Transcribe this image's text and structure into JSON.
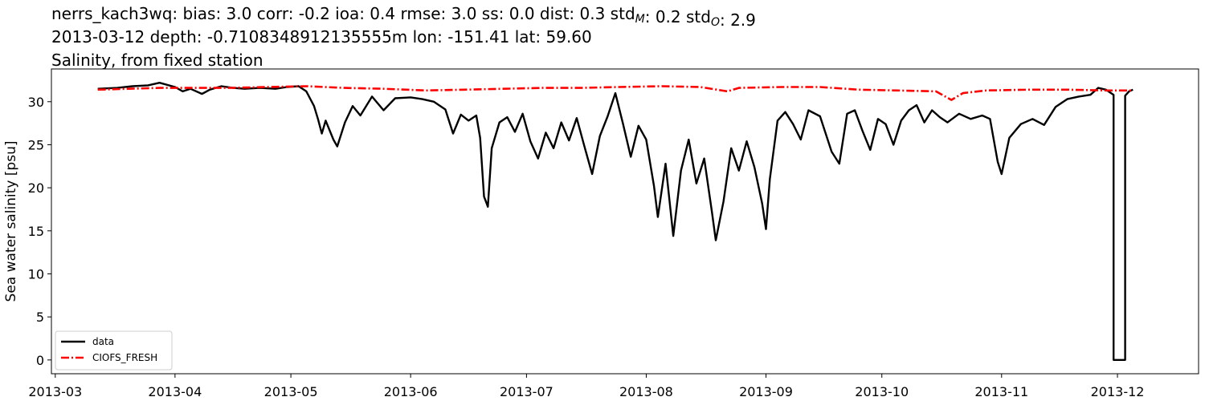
{
  "chart_data": {
    "type": "line",
    "title_lines": [
      {
        "parts": [
          {
            "text": "nerrs_kach3wq: bias: 3.0  corr: -0.2  ioa: 0.4  rmse: 3.0  ss: 0.0  dist: 0.3  std"
          },
          {
            "text": "M",
            "sub": true
          },
          {
            "text": ": 0.2  std"
          },
          {
            "text": "O",
            "sub": true
          },
          {
            "text": ": 2.9"
          }
        ]
      },
      {
        "parts": [
          {
            "text": "2013-03-12 depth: -0.7108348912135555m lon: -151.41 lat: 59.60"
          }
        ]
      },
      {
        "parts": [
          {
            "text": "Salinity, from fixed station"
          }
        ]
      }
    ],
    "xlabel": "",
    "ylabel": "Sea water salinity [psu]",
    "xlim": [
      "2013-02-28",
      "2013-12-22"
    ],
    "ylim": [
      -1.6,
      33.8
    ],
    "x_ticks": [
      "2013-03-01",
      "2013-04-01",
      "2013-05-01",
      "2013-06-01",
      "2013-07-01",
      "2013-08-01",
      "2013-09-01",
      "2013-10-01",
      "2013-11-01",
      "2013-12-01"
    ],
    "x_tick_labels": [
      "2013-03",
      "2013-04",
      "2013-05",
      "2013-06",
      "2013-07",
      "2013-08",
      "2013-09",
      "2013-10",
      "2013-11",
      "2013-12"
    ],
    "y_ticks": [
      0,
      5,
      10,
      15,
      20,
      25,
      30
    ],
    "grid": false,
    "legend_position": "lower-left",
    "series": [
      {
        "name": "data",
        "color": "#000000",
        "style": "solid",
        "points": [
          [
            "2013-03-12",
            31.5
          ],
          [
            "2013-03-17",
            31.6
          ],
          [
            "2013-03-21",
            31.8
          ],
          [
            "2013-03-25",
            31.9
          ],
          [
            "2013-03-28",
            32.2
          ],
          [
            "2013-04-01",
            31.7
          ],
          [
            "2013-04-03",
            31.2
          ],
          [
            "2013-04-05",
            31.5
          ],
          [
            "2013-04-08",
            30.9
          ],
          [
            "2013-04-10",
            31.4
          ],
          [
            "2013-04-13",
            31.8
          ],
          [
            "2013-04-16",
            31.6
          ],
          [
            "2013-04-19",
            31.5
          ],
          [
            "2013-04-23",
            31.6
          ],
          [
            "2013-04-27",
            31.5
          ],
          [
            "2013-04-30",
            31.7
          ],
          [
            "2013-05-03",
            31.8
          ],
          [
            "2013-05-05",
            31.2
          ],
          [
            "2013-05-07",
            29.5
          ],
          [
            "2013-05-08",
            28.0
          ],
          [
            "2013-05-09",
            26.3
          ],
          [
            "2013-05-10",
            27.8
          ],
          [
            "2013-05-12",
            25.6
          ],
          [
            "2013-05-13",
            24.8
          ],
          [
            "2013-05-15",
            27.6
          ],
          [
            "2013-05-17",
            29.5
          ],
          [
            "2013-05-19",
            28.4
          ],
          [
            "2013-05-22",
            30.6
          ],
          [
            "2013-05-25",
            29.0
          ],
          [
            "2013-05-28",
            30.4
          ],
          [
            "2013-06-01",
            30.5
          ],
          [
            "2013-06-04",
            30.3
          ],
          [
            "2013-06-07",
            30.0
          ],
          [
            "2013-06-10",
            29.1
          ],
          [
            "2013-06-12",
            26.3
          ],
          [
            "2013-06-14",
            28.5
          ],
          [
            "2013-06-16",
            27.8
          ],
          [
            "2013-06-18",
            28.4
          ],
          [
            "2013-06-19",
            25.8
          ],
          [
            "2013-06-20",
            19.0
          ],
          [
            "2013-06-21",
            17.8
          ],
          [
            "2013-06-22",
            24.6
          ],
          [
            "2013-06-24",
            27.6
          ],
          [
            "2013-06-26",
            28.2
          ],
          [
            "2013-06-28",
            26.5
          ],
          [
            "2013-06-30",
            28.6
          ],
          [
            "2013-07-02",
            25.4
          ],
          [
            "2013-07-04",
            23.4
          ],
          [
            "2013-07-06",
            26.4
          ],
          [
            "2013-07-08",
            24.6
          ],
          [
            "2013-07-10",
            27.6
          ],
          [
            "2013-07-12",
            25.5
          ],
          [
            "2013-07-14",
            28.1
          ],
          [
            "2013-07-16",
            24.8
          ],
          [
            "2013-07-18",
            21.6
          ],
          [
            "2013-07-20",
            26.0
          ],
          [
            "2013-07-22",
            28.3
          ],
          [
            "2013-07-24",
            31.0
          ],
          [
            "2013-07-26",
            27.4
          ],
          [
            "2013-07-28",
            23.6
          ],
          [
            "2013-07-30",
            27.2
          ],
          [
            "2013-08-01",
            25.6
          ],
          [
            "2013-08-03",
            20.2
          ],
          [
            "2013-08-04",
            16.6
          ],
          [
            "2013-08-06",
            22.8
          ],
          [
            "2013-08-08",
            14.4
          ],
          [
            "2013-08-10",
            22.0
          ],
          [
            "2013-08-12",
            25.6
          ],
          [
            "2013-08-14",
            20.5
          ],
          [
            "2013-08-16",
            23.4
          ],
          [
            "2013-08-18",
            17.2
          ],
          [
            "2013-08-19",
            13.9
          ],
          [
            "2013-08-21",
            18.4
          ],
          [
            "2013-08-23",
            24.6
          ],
          [
            "2013-08-25",
            22.0
          ],
          [
            "2013-08-27",
            25.4
          ],
          [
            "2013-08-29",
            22.4
          ],
          [
            "2013-08-31",
            18.2
          ],
          [
            "2013-09-01",
            15.2
          ],
          [
            "2013-09-02",
            21.0
          ],
          [
            "2013-09-04",
            27.8
          ],
          [
            "2013-09-06",
            28.8
          ],
          [
            "2013-09-08",
            27.4
          ],
          [
            "2013-09-10",
            25.6
          ],
          [
            "2013-09-12",
            29.0
          ],
          [
            "2013-09-15",
            28.3
          ],
          [
            "2013-09-18",
            24.2
          ],
          [
            "2013-09-20",
            22.8
          ],
          [
            "2013-09-22",
            28.6
          ],
          [
            "2013-09-24",
            29.0
          ],
          [
            "2013-09-26",
            26.6
          ],
          [
            "2013-09-28",
            24.4
          ],
          [
            "2013-09-30",
            28.0
          ],
          [
            "2013-10-02",
            27.4
          ],
          [
            "2013-10-04",
            25.0
          ],
          [
            "2013-10-06",
            27.8
          ],
          [
            "2013-10-08",
            29.0
          ],
          [
            "2013-10-10",
            29.6
          ],
          [
            "2013-10-12",
            27.6
          ],
          [
            "2013-10-14",
            29.0
          ],
          [
            "2013-10-16",
            28.2
          ],
          [
            "2013-10-18",
            27.6
          ],
          [
            "2013-10-21",
            28.6
          ],
          [
            "2013-10-24",
            28.0
          ],
          [
            "2013-10-27",
            28.4
          ],
          [
            "2013-10-29",
            28.0
          ],
          [
            "2013-10-31",
            23.0
          ],
          [
            "2013-11-01",
            21.6
          ],
          [
            "2013-11-03",
            25.8
          ],
          [
            "2013-11-06",
            27.4
          ],
          [
            "2013-11-09",
            28.0
          ],
          [
            "2013-11-12",
            27.3
          ],
          [
            "2013-11-15",
            29.4
          ],
          [
            "2013-11-18",
            30.3
          ],
          [
            "2013-11-21",
            30.6
          ],
          [
            "2013-11-24",
            30.8
          ],
          [
            "2013-11-26",
            31.6
          ],
          [
            "2013-11-28",
            31.4
          ],
          [
            "2013-11-30",
            30.8
          ],
          [
            "2013-11-30",
            0.0
          ],
          [
            "2013-12-02",
            0.0
          ],
          [
            "2013-12-03",
            0.0
          ],
          [
            "2013-12-03",
            30.7
          ],
          [
            "2013-12-04",
            31.2
          ],
          [
            "2013-12-05",
            31.4
          ]
        ]
      },
      {
        "name": "CIOFS_FRESH",
        "color": "#ff0000",
        "style": "dashdot",
        "points": [
          [
            "2013-03-12",
            31.4
          ],
          [
            "2013-03-20",
            31.5
          ],
          [
            "2013-03-28",
            31.6
          ],
          [
            "2013-04-05",
            31.6
          ],
          [
            "2013-04-15",
            31.6
          ],
          [
            "2013-04-25",
            31.7
          ],
          [
            "2013-05-05",
            31.8
          ],
          [
            "2013-05-15",
            31.6
          ],
          [
            "2013-05-25",
            31.5
          ],
          [
            "2013-06-05",
            31.3
          ],
          [
            "2013-06-15",
            31.4
          ],
          [
            "2013-06-25",
            31.5
          ],
          [
            "2013-07-05",
            31.6
          ],
          [
            "2013-07-15",
            31.6
          ],
          [
            "2013-07-25",
            31.7
          ],
          [
            "2013-08-05",
            31.8
          ],
          [
            "2013-08-15",
            31.7
          ],
          [
            "2013-08-22",
            31.2
          ],
          [
            "2013-08-25",
            31.6
          ],
          [
            "2013-09-05",
            31.7
          ],
          [
            "2013-09-15",
            31.7
          ],
          [
            "2013-09-25",
            31.4
          ],
          [
            "2013-10-05",
            31.3
          ],
          [
            "2013-10-15",
            31.2
          ],
          [
            "2013-10-19",
            30.2
          ],
          [
            "2013-10-22",
            31.0
          ],
          [
            "2013-10-28",
            31.3
          ],
          [
            "2013-11-08",
            31.4
          ],
          [
            "2013-11-18",
            31.4
          ],
          [
            "2013-11-28",
            31.3
          ],
          [
            "2013-12-05",
            31.3
          ]
        ]
      }
    ]
  }
}
